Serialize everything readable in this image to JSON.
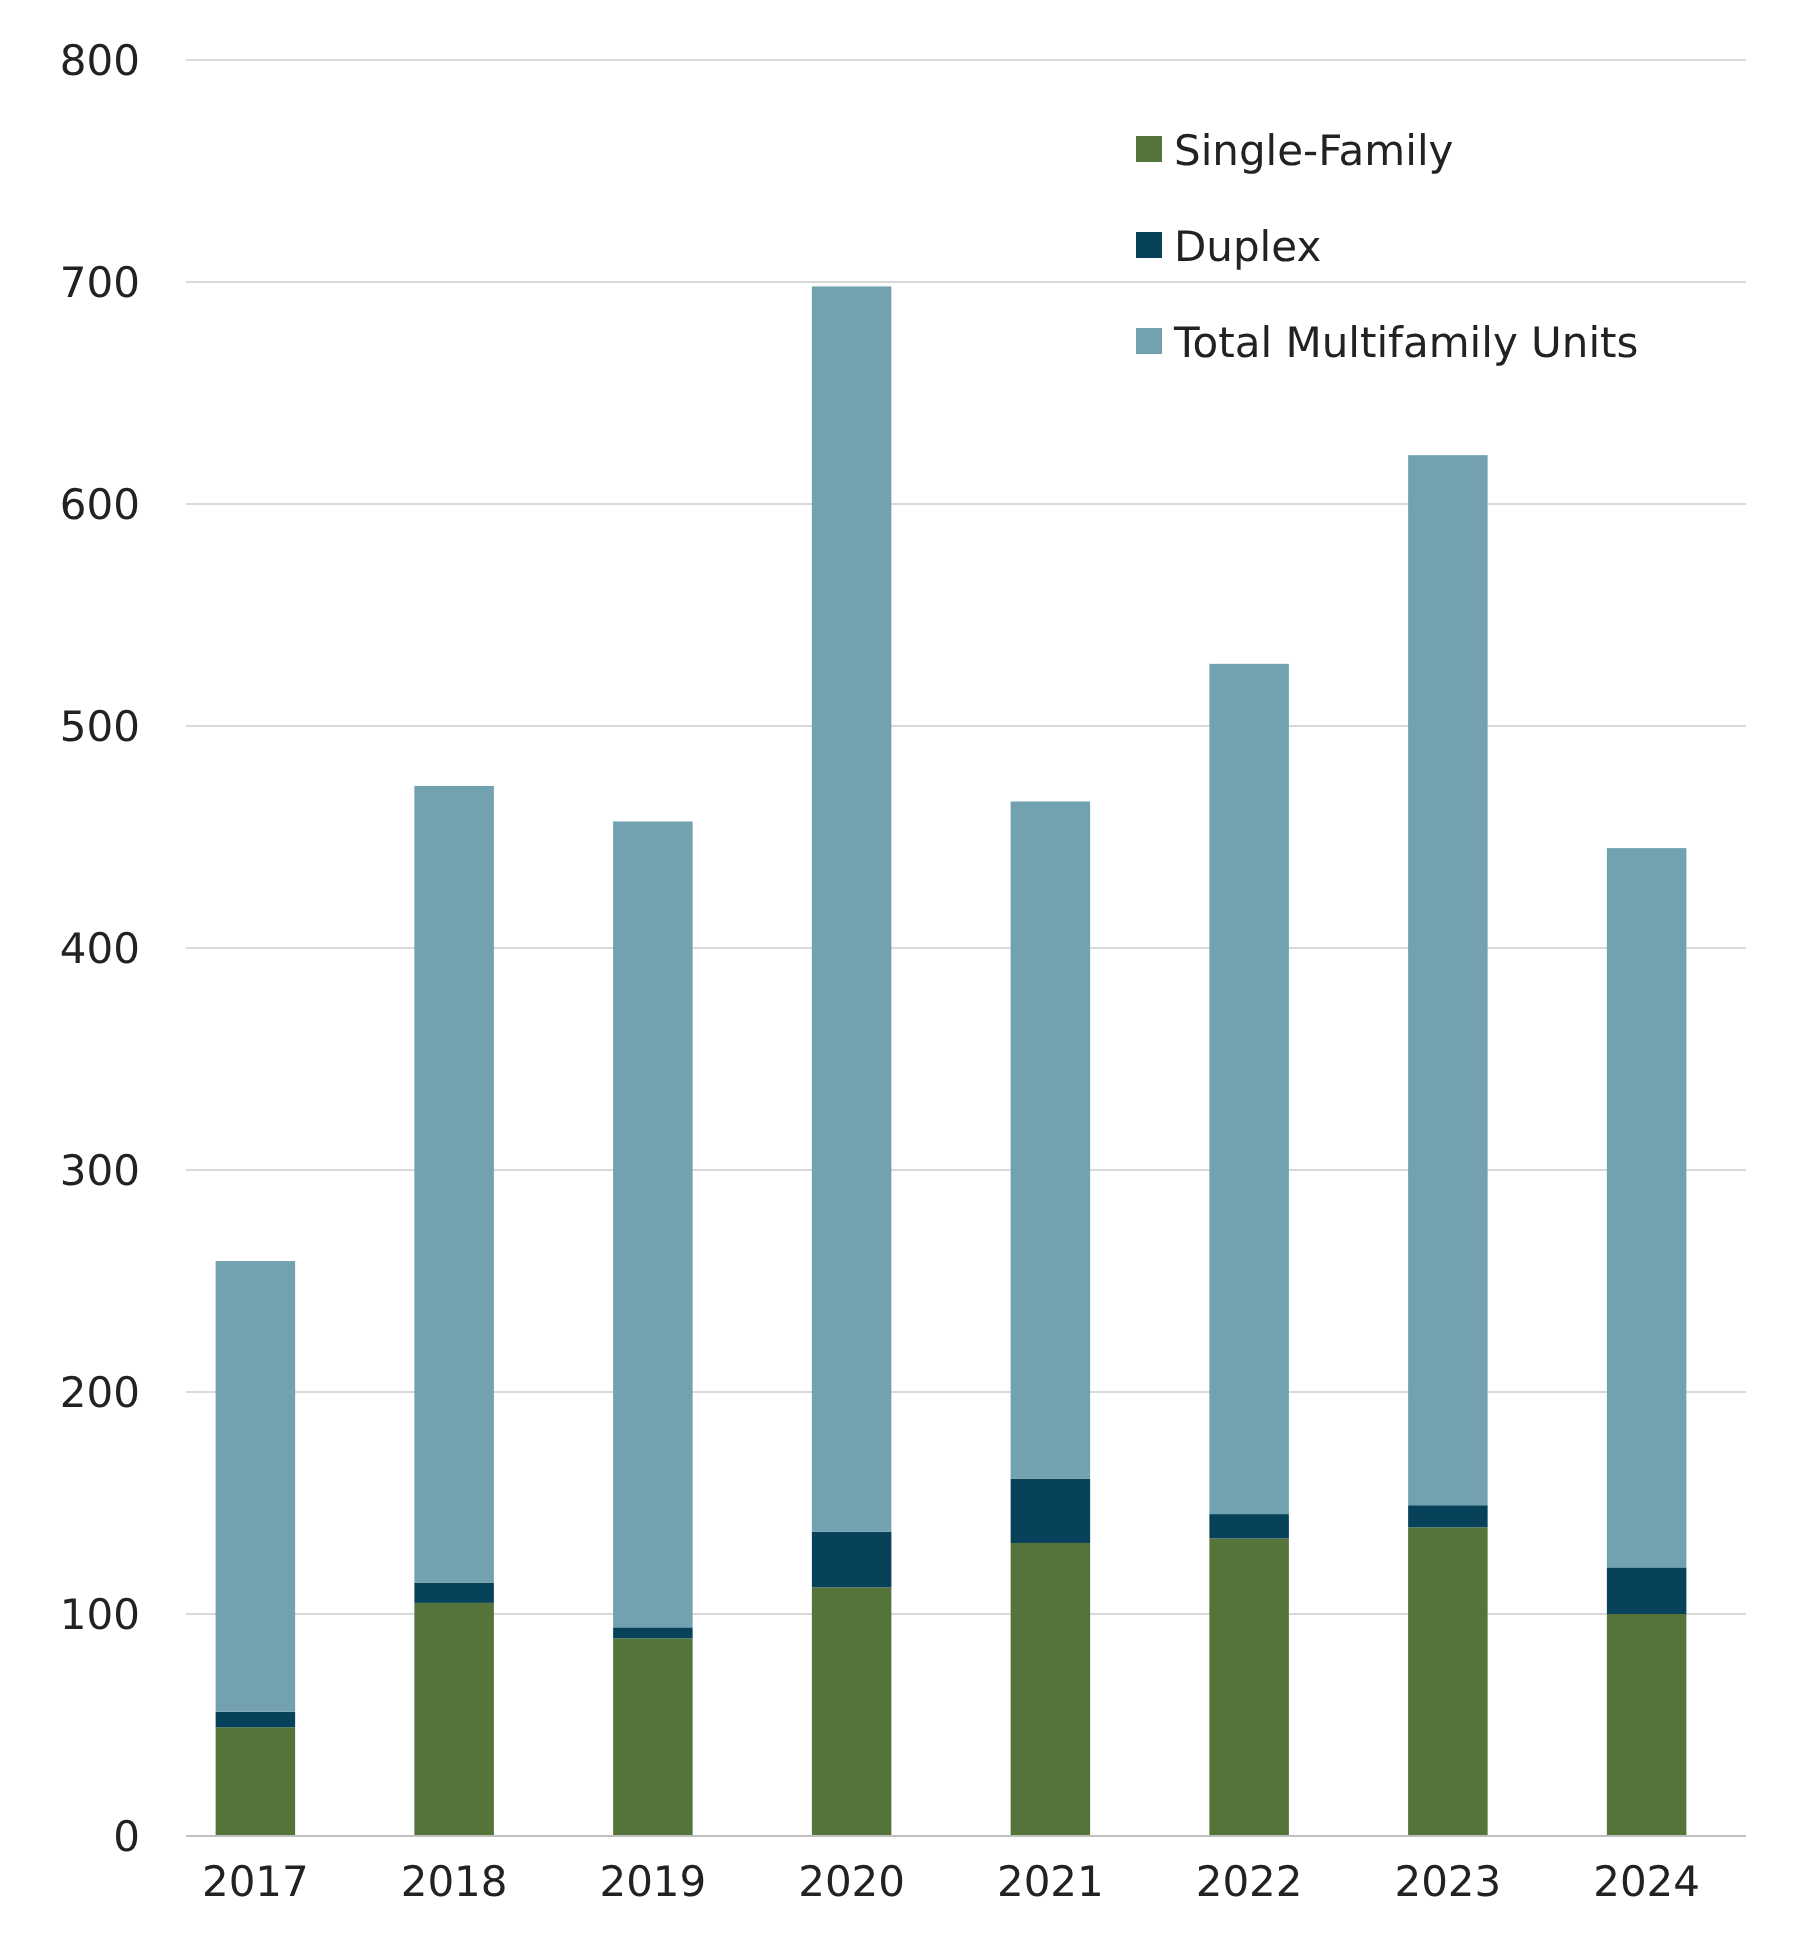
{
  "chart_data": {
    "type": "bar",
    "stacked": true,
    "categories": [
      "2017",
      "2018",
      "2019",
      "2020",
      "2021",
      "2022",
      "2023",
      "2024"
    ],
    "series": [
      {
        "name": "Single-Family",
        "color": "#55743a",
        "values": [
          49,
          105,
          89,
          112,
          132,
          134,
          139,
          100
        ]
      },
      {
        "name": "Duplex",
        "color": "#07415a",
        "values": [
          7,
          9,
          5,
          25,
          29,
          11,
          10,
          21
        ]
      },
      {
        "name": "Total Multifamily Units",
        "color": "#72a1b0",
        "values": [
          203,
          359,
          363,
          561,
          305,
          383,
          473,
          324
        ]
      }
    ],
    "ylim": [
      0,
      800
    ],
    "yticks": [
      0,
      100,
      200,
      300,
      400,
      500,
      600,
      700,
      800
    ],
    "grid": "y",
    "legend": "top right"
  }
}
